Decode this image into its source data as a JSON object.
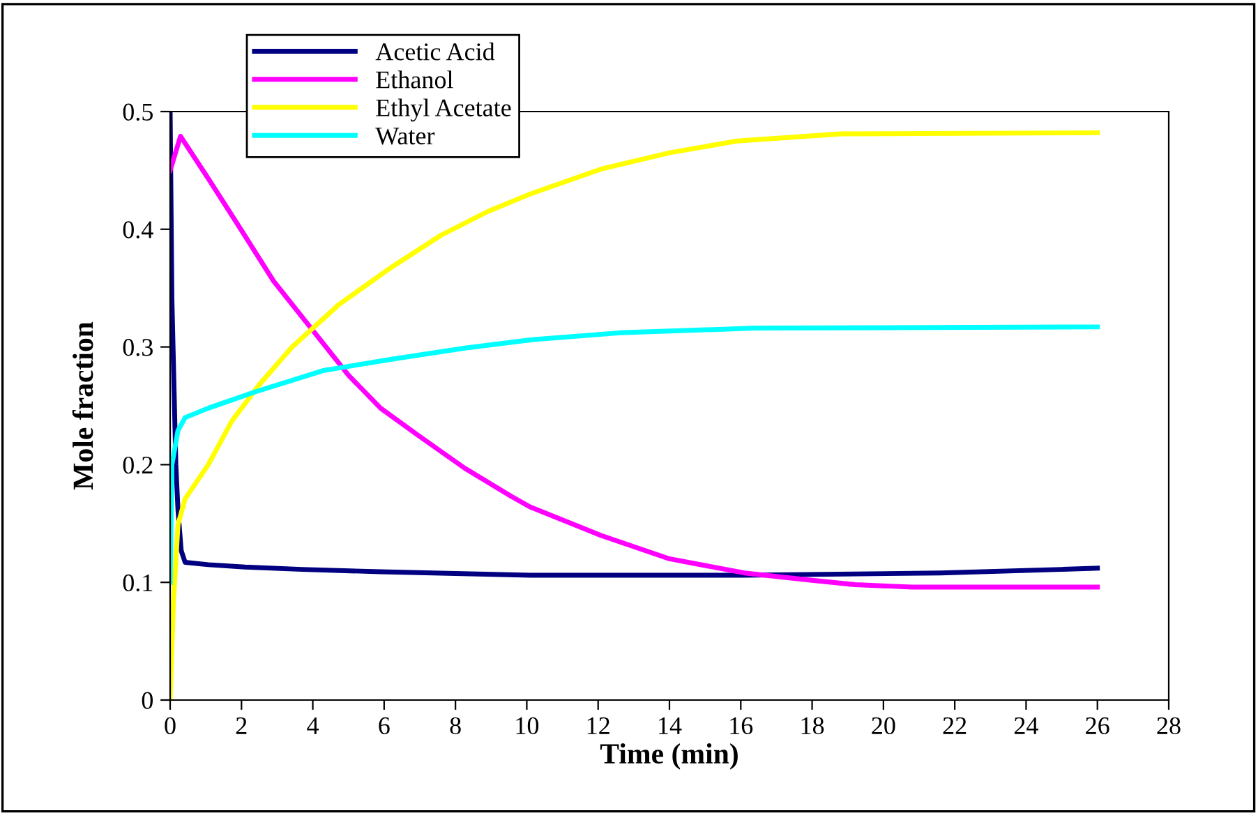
{
  "chart_data": {
    "type": "line",
    "xlabel": "Time (min)",
    "ylabel": "Mole fraction",
    "xlim": [
      0,
      28
    ],
    "xticks": [
      0,
      2,
      4,
      6,
      8,
      10,
      12,
      14,
      16,
      18,
      20,
      22,
      24,
      26,
      28
    ],
    "ylim": [
      0,
      0.5
    ],
    "yticks": [
      0,
      0.1,
      0.2,
      0.3,
      0.4,
      0.5
    ],
    "grid": false,
    "legend": "top left",
    "marker": "none",
    "line_style": "solid",
    "series": [
      {
        "name": "Acetic Acid",
        "color": "#000080",
        "x": [
          0,
          0.05,
          0.16,
          0.22,
          0.31,
          0.42,
          1.07,
          2.1,
          3.7,
          5.9,
          10.1,
          16.1,
          21.6,
          25.0,
          26.0
        ],
        "values": [
          0.5,
          0.34,
          0.2,
          0.161,
          0.127,
          0.117,
          0.115,
          0.113,
          0.111,
          0.109,
          0.106,
          0.106,
          0.108,
          0.111,
          0.112
        ]
      },
      {
        "name": "Ethanol",
        "color": "#ff00ff",
        "x": [
          0,
          0.29,
          1.07,
          2.0,
          2.9,
          3.95,
          5.0,
          5.9,
          6.95,
          8.26,
          9.57,
          10.1,
          12.07,
          14.0,
          16.1,
          17.9,
          19.2,
          20.8,
          26.0
        ],
        "values": [
          0.45,
          0.479,
          0.443,
          0.399,
          0.356,
          0.316,
          0.276,
          0.248,
          0.225,
          0.197,
          0.173,
          0.164,
          0.14,
          0.12,
          0.108,
          0.102,
          0.098,
          0.096,
          0.096
        ]
      },
      {
        "name": "Ethyl Acetate",
        "color": "#ffff00",
        "x": [
          0,
          0.09,
          0.22,
          0.42,
          1.07,
          1.73,
          2.5,
          3.42,
          4.73,
          6.17,
          7.6,
          8.9,
          10.1,
          12.07,
          14.0,
          15.9,
          18.8,
          26.0
        ],
        "values": [
          0,
          0.082,
          0.149,
          0.171,
          0.2,
          0.237,
          0.268,
          0.3,
          0.336,
          0.367,
          0.395,
          0.415,
          0.43,
          0.451,
          0.465,
          0.475,
          0.481,
          0.482
        ]
      },
      {
        "name": "Water",
        "color": "#00ffff",
        "x": [
          0,
          0.05,
          0.22,
          0.42,
          1.07,
          2.4,
          4.3,
          6.3,
          8.26,
          10.1,
          12.6,
          16.4,
          26.0
        ],
        "values": [
          0.1,
          0.2,
          0.229,
          0.24,
          0.248,
          0.262,
          0.28,
          0.29,
          0.299,
          0.306,
          0.312,
          0.316,
          0.317
        ]
      }
    ]
  }
}
